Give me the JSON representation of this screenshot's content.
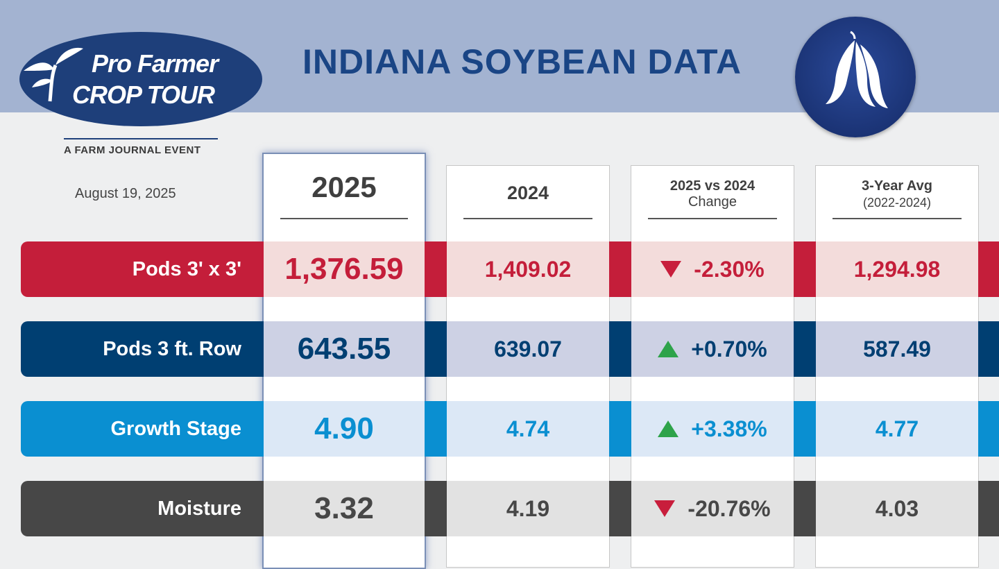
{
  "header": {
    "logo_line1": "Pro Farmer",
    "logo_line2": "CROP TOUR",
    "logo_subtitle": "A FARM JOURNAL EVENT",
    "title": "INDIANA SOYBEAN DATA",
    "date": "August 19, 2025",
    "badge_icon": "soybean-pod-icon"
  },
  "columns": [
    {
      "line1": "2025",
      "line2": ""
    },
    {
      "line1": "2024",
      "line2": ""
    },
    {
      "line1": "2025 vs 2024",
      "line2": "Change"
    },
    {
      "line1": "3-Year Avg",
      "line2": "(2022-2024)"
    }
  ],
  "rows": [
    {
      "label": "Pods 3' x 3'",
      "color": "#c41e3a",
      "tint": "#f3dcdb",
      "text": "#c41e3a",
      "v2025": "1,376.59",
      "v2024": "1,409.02",
      "direction": "down",
      "change": "-2.30%",
      "avg": "1,294.98"
    },
    {
      "label": "Pods 3 ft. Row",
      "color": "#003f72",
      "tint": "#cdd1e4",
      "text": "#003f72",
      "v2025": "643.55",
      "v2024": "639.07",
      "direction": "up",
      "change": "+0.70%",
      "avg": "587.49"
    },
    {
      "label": "Growth Stage",
      "color": "#0a8fd1",
      "tint": "#dce8f6",
      "text": "#0a8fd1",
      "v2025": "4.90",
      "v2024": "4.74",
      "direction": "up",
      "change": "+3.38%",
      "avg": "4.77"
    },
    {
      "label": "Moisture",
      "color": "#474747",
      "tint": "#e2e2e2",
      "text": "#474747",
      "v2025": "3.32",
      "v2024": "4.19",
      "direction": "down",
      "change": "-20.76%",
      "avg": "4.03"
    }
  ]
}
